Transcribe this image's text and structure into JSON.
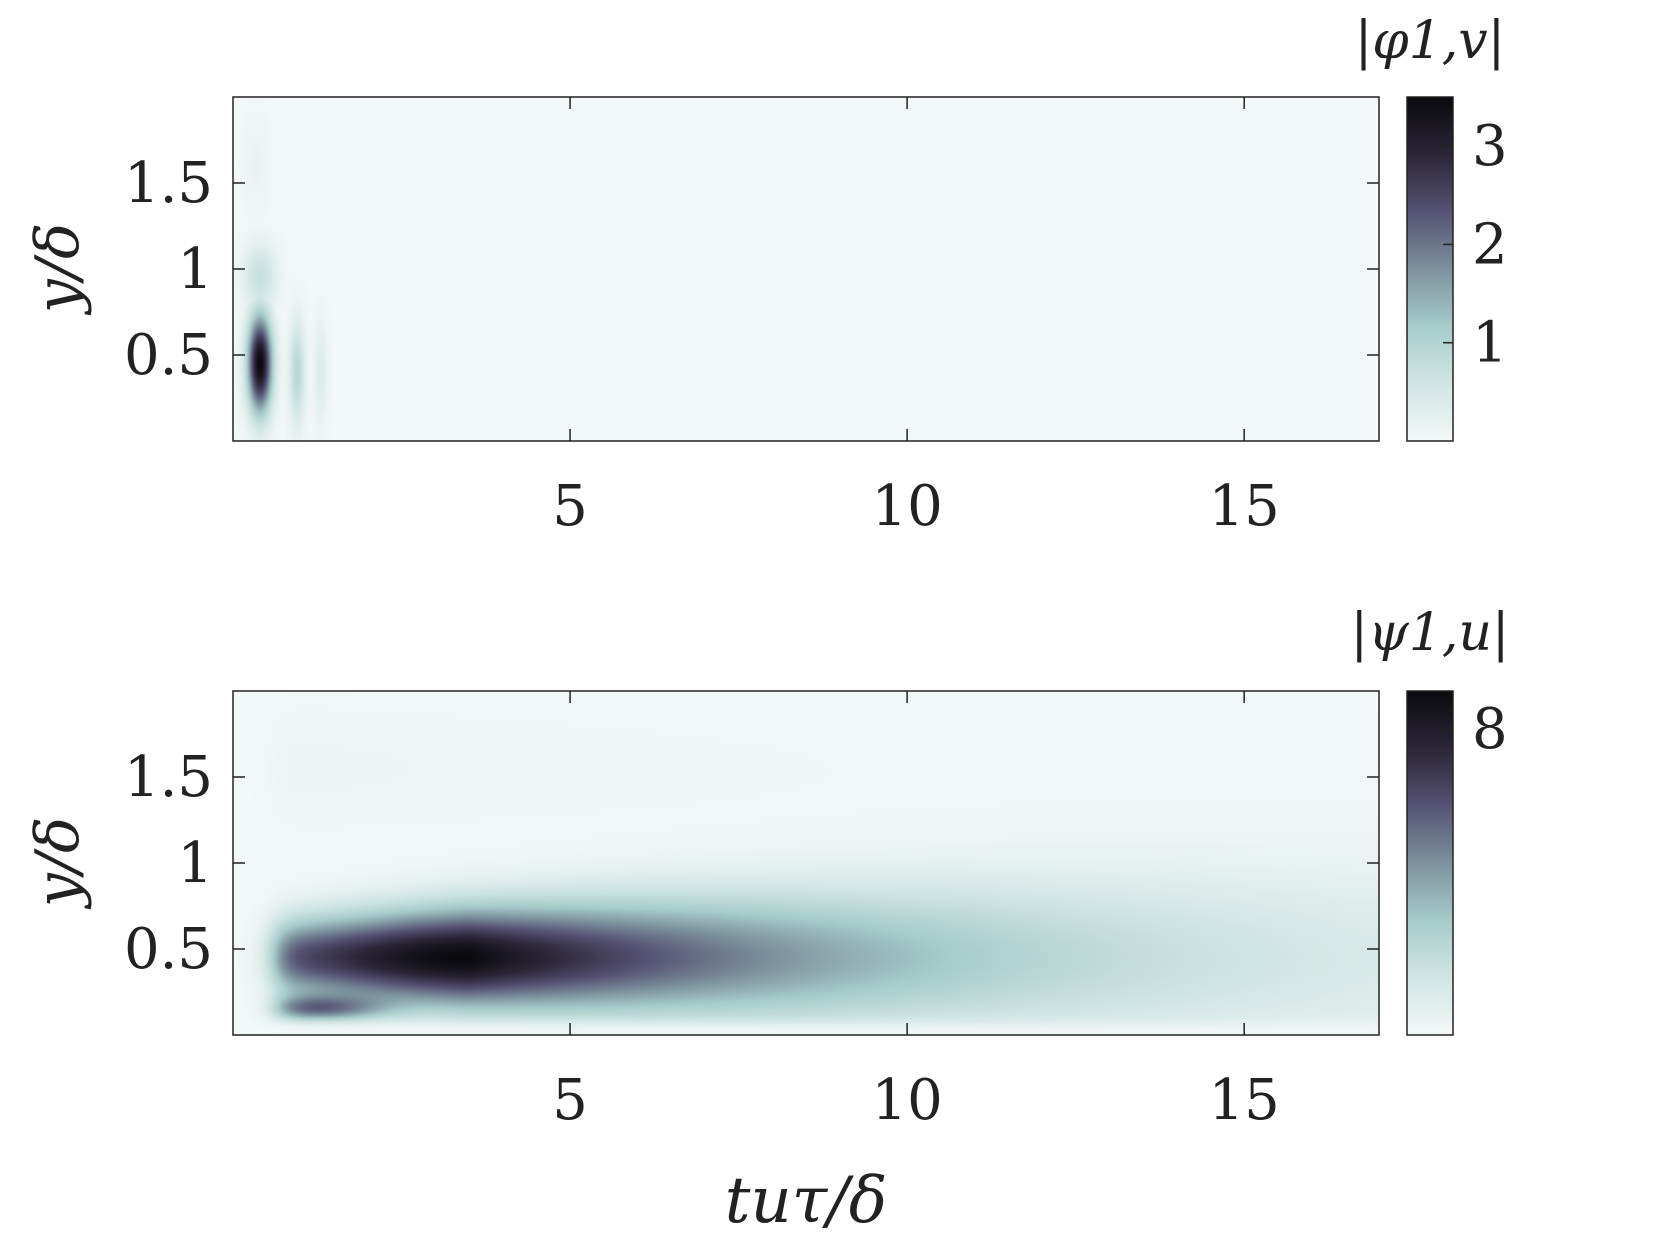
{
  "chart_data": [
    {
      "type": "heatmap",
      "panel": "top",
      "xlabel": "",
      "ylabel": "y/δ",
      "xlim": [
        0,
        17
      ],
      "ylim": [
        0,
        2
      ],
      "xticks": [
        5,
        10,
        15
      ],
      "xtick_labels": [
        "5",
        "10",
        "15"
      ],
      "yticks": [
        0.5,
        1,
        1.5
      ],
      "ytick_labels": [
        "0.5",
        "1",
        "1.5"
      ],
      "colorbar": {
        "title": "|φ1,v|",
        "range": [
          0,
          3.5
        ],
        "ticks": [
          1,
          2,
          3
        ],
        "tick_labels": [
          "1",
          "2",
          "3"
        ]
      },
      "peak": {
        "x": 0.4,
        "y": 0.45,
        "value": 3.5
      },
      "features": [
        {
          "x": 0.4,
          "y": 0.45,
          "x_halfwidth": 0.18,
          "y_halfwidth": 0.28,
          "value": 3.5
        },
        {
          "x": 0.4,
          "y": 0.95,
          "x_halfwidth": 0.25,
          "y_halfwidth": 0.2,
          "value": 0.7
        },
        {
          "x": 0.95,
          "y": 0.4,
          "x_halfwidth": 0.12,
          "y_halfwidth": 0.3,
          "value": 0.9
        },
        {
          "x": 1.3,
          "y": 0.4,
          "x_halfwidth": 0.1,
          "y_halfwidth": 0.3,
          "value": 0.4
        },
        {
          "x": 0.35,
          "y": 1.6,
          "x_halfwidth": 0.2,
          "y_halfwidth": 0.3,
          "value": 0.15
        }
      ],
      "grid": false
    },
    {
      "type": "heatmap",
      "panel": "bottom",
      "xlabel": "tuτ/δ",
      "ylabel": "y/δ",
      "xlim": [
        0,
        17
      ],
      "ylim": [
        0,
        2
      ],
      "xticks": [
        5,
        10,
        15
      ],
      "xtick_labels": [
        "5",
        "10",
        "15"
      ],
      "yticks": [
        0.5,
        1,
        1.5
      ],
      "ytick_labels": [
        "0.5",
        "1",
        "1.5"
      ],
      "colorbar": {
        "title": "|ψ1,u|",
        "range": [
          0,
          9
        ],
        "ticks": [
          8
        ],
        "tick_labels": [
          "8"
        ]
      },
      "peak": {
        "x": 3.5,
        "y": 0.45,
        "value": 9
      },
      "band": {
        "y_center": 0.45,
        "onset_x": 0.6,
        "decay_length": 6.5
      },
      "grid": false
    }
  ],
  "colors": {
    "colormap": [
      "#f3f8f8",
      "#cfe5e3",
      "#a7cccb",
      "#7c919d",
      "#555173",
      "#2c2638",
      "#0a0a0e"
    ],
    "axes": "#222222",
    "background": "#ffffff"
  }
}
